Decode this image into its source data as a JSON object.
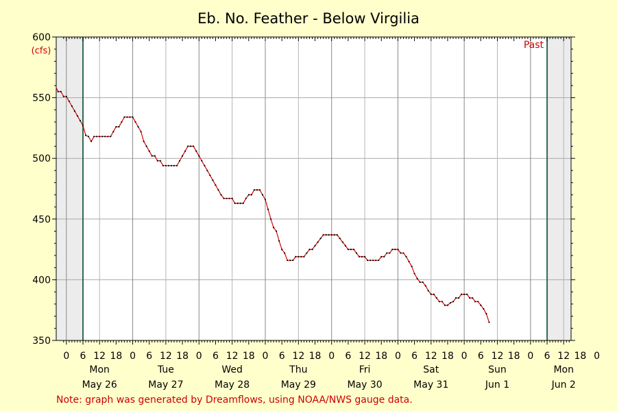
{
  "chart_data": {
    "type": "line",
    "title": "Eb. No. Feather - Below Virgilia",
    "ylabel": "(cfs)",
    "xlabel": "",
    "ylim": [
      350,
      600
    ],
    "yticks": [
      600,
      550,
      500,
      450,
      400,
      350
    ],
    "grid": true,
    "x_units": "hours since 00:00 May 26",
    "xlim": [
      -7,
      186
    ],
    "hour_tick_labels": [
      {
        "h": -6,
        "label": "0"
      },
      {
        "h": 0,
        "label": "6"
      },
      {
        "h": 6,
        "label": "12"
      },
      {
        "h": 12,
        "label": "18"
      },
      {
        "h": 18,
        "label": "0"
      },
      {
        "h": 24,
        "label": "6"
      },
      {
        "h": 30,
        "label": "12"
      },
      {
        "h": 36,
        "label": "18"
      },
      {
        "h": 42,
        "label": "0"
      },
      {
        "h": 48,
        "label": "6"
      },
      {
        "h": 54,
        "label": "12"
      },
      {
        "h": 60,
        "label": "18"
      },
      {
        "h": 66,
        "label": "0"
      },
      {
        "h": 72,
        "label": "6"
      },
      {
        "h": 78,
        "label": "12"
      },
      {
        "h": 84,
        "label": "18"
      },
      {
        "h": 90,
        "label": "0"
      },
      {
        "h": 96,
        "label": "6"
      },
      {
        "h": 102,
        "label": "12"
      },
      {
        "h": 108,
        "label": "18"
      },
      {
        "h": 114,
        "label": "0"
      },
      {
        "h": 120,
        "label": "6"
      },
      {
        "h": 126,
        "label": "12"
      },
      {
        "h": 132,
        "label": "18"
      },
      {
        "h": 138,
        "label": "0"
      },
      {
        "h": 144,
        "label": "6"
      },
      {
        "h": 150,
        "label": "12"
      },
      {
        "h": 156,
        "label": "18"
      },
      {
        "h": 162,
        "label": "0"
      },
      {
        "h": 168,
        "label": "6"
      },
      {
        "h": 174,
        "label": "12"
      },
      {
        "h": 180,
        "label": "18"
      },
      {
        "h": 186,
        "label": "0"
      }
    ],
    "day_labels": [
      {
        "h": 6,
        "day": "Mon",
        "date": "May 26"
      },
      {
        "h": 30,
        "day": "Tue",
        "date": "May 27"
      },
      {
        "h": 54,
        "day": "Wed",
        "date": "May 28"
      },
      {
        "h": 78,
        "day": "Thu",
        "date": "May 29"
      },
      {
        "h": 102,
        "day": "Fri",
        "date": "May 30"
      },
      {
        "h": 126,
        "day": "Sat",
        "date": "May 31"
      },
      {
        "h": 150,
        "day": "Sun",
        "date": "Jun 1"
      },
      {
        "h": 174,
        "day": "Mon",
        "date": "Jun 2"
      }
    ],
    "past_label": "Past",
    "series": [
      {
        "color": "#dd0000",
        "points": [
          [
            -10,
            560
          ],
          [
            -9,
            555
          ],
          [
            -8,
            555
          ],
          [
            -7,
            551
          ],
          [
            -6,
            551
          ],
          [
            -5,
            547
          ],
          [
            -4,
            543
          ],
          [
            -3,
            539
          ],
          [
            -2,
            535
          ],
          [
            -1,
            531
          ],
          [
            0,
            527
          ],
          [
            1,
            519
          ],
          [
            2,
            518
          ],
          [
            3,
            514
          ],
          [
            4,
            518
          ],
          [
            5,
            518
          ],
          [
            6,
            518
          ],
          [
            7,
            518
          ],
          [
            8,
            518
          ],
          [
            9,
            518
          ],
          [
            10,
            518
          ],
          [
            11,
            522
          ],
          [
            12,
            526
          ],
          [
            13,
            526
          ],
          [
            14,
            530
          ],
          [
            15,
            534
          ],
          [
            16,
            534
          ],
          [
            17,
            534
          ],
          [
            18,
            534
          ],
          [
            19,
            530
          ],
          [
            20,
            526
          ],
          [
            21,
            522
          ],
          [
            22,
            514
          ],
          [
            23,
            510
          ],
          [
            24,
            506
          ],
          [
            25,
            502
          ],
          [
            26,
            502
          ],
          [
            27,
            498
          ],
          [
            28,
            498
          ],
          [
            29,
            494
          ],
          [
            30,
            494
          ],
          [
            31,
            494
          ],
          [
            32,
            494
          ],
          [
            33,
            494
          ],
          [
            34,
            494
          ],
          [
            35,
            498
          ],
          [
            36,
            502
          ],
          [
            37,
            506
          ],
          [
            38,
            510
          ],
          [
            39,
            510
          ],
          [
            40,
            510
          ],
          [
            41,
            506
          ],
          [
            42,
            502
          ],
          [
            43,
            498
          ],
          [
            44,
            494
          ],
          [
            45,
            490
          ],
          [
            46,
            486
          ],
          [
            47,
            482
          ],
          [
            48,
            478
          ],
          [
            49,
            474
          ],
          [
            50,
            470
          ],
          [
            51,
            467
          ],
          [
            52,
            467
          ],
          [
            53,
            467
          ],
          [
            54,
            467
          ],
          [
            55,
            463
          ],
          [
            56,
            463
          ],
          [
            57,
            463
          ],
          [
            58,
            463
          ],
          [
            59,
            467
          ],
          [
            60,
            470
          ],
          [
            61,
            470
          ],
          [
            62,
            474
          ],
          [
            63,
            474
          ],
          [
            64,
            474
          ],
          [
            65,
            470
          ],
          [
            66,
            466
          ],
          [
            67,
            458
          ],
          [
            68,
            450
          ],
          [
            69,
            443
          ],
          [
            70,
            440
          ],
          [
            71,
            432
          ],
          [
            72,
            425
          ],
          [
            73,
            422
          ],
          [
            74,
            416
          ],
          [
            75,
            416
          ],
          [
            76,
            416
          ],
          [
            77,
            419
          ],
          [
            78,
            419
          ],
          [
            79,
            419
          ],
          [
            80,
            419
          ],
          [
            81,
            422
          ],
          [
            82,
            425
          ],
          [
            83,
            425
          ],
          [
            84,
            428
          ],
          [
            85,
            431
          ],
          [
            86,
            434
          ],
          [
            87,
            437
          ],
          [
            88,
            437
          ],
          [
            89,
            437
          ],
          [
            90,
            437
          ],
          [
            91,
            437
          ],
          [
            92,
            437
          ],
          [
            93,
            434
          ],
          [
            94,
            431
          ],
          [
            95,
            428
          ],
          [
            96,
            425
          ],
          [
            97,
            425
          ],
          [
            98,
            425
          ],
          [
            99,
            422
          ],
          [
            100,
            419
          ],
          [
            101,
            419
          ],
          [
            102,
            419
          ],
          [
            103,
            416
          ],
          [
            104,
            416
          ],
          [
            105,
            416
          ],
          [
            106,
            416
          ],
          [
            107,
            416
          ],
          [
            108,
            419
          ],
          [
            109,
            419
          ],
          [
            110,
            422
          ],
          [
            111,
            422
          ],
          [
            112,
            425
          ],
          [
            113,
            425
          ],
          [
            114,
            425
          ],
          [
            115,
            422
          ],
          [
            116,
            422
          ],
          [
            117,
            419
          ],
          [
            118,
            415
          ],
          [
            119,
            411
          ],
          [
            120,
            405
          ],
          [
            121,
            401
          ],
          [
            122,
            398
          ],
          [
            123,
            398
          ],
          [
            124,
            395
          ],
          [
            125,
            391
          ],
          [
            126,
            388
          ],
          [
            127,
            388
          ],
          [
            128,
            385
          ],
          [
            129,
            382
          ],
          [
            130,
            382
          ],
          [
            131,
            379
          ],
          [
            132,
            379
          ],
          [
            133,
            381
          ],
          [
            134,
            382
          ],
          [
            135,
            385
          ],
          [
            136,
            385
          ],
          [
            137,
            388
          ],
          [
            138,
            388
          ],
          [
            139,
            388
          ],
          [
            140,
            385
          ],
          [
            141,
            385
          ],
          [
            142,
            382
          ],
          [
            143,
            382
          ],
          [
            144,
            379
          ],
          [
            145,
            376
          ],
          [
            146,
            372
          ],
          [
            147,
            365
          ]
        ]
      }
    ]
  },
  "footer": {
    "note": "Note: graph was generated by Dreamflows, using NOAA/NWS gauge data."
  }
}
